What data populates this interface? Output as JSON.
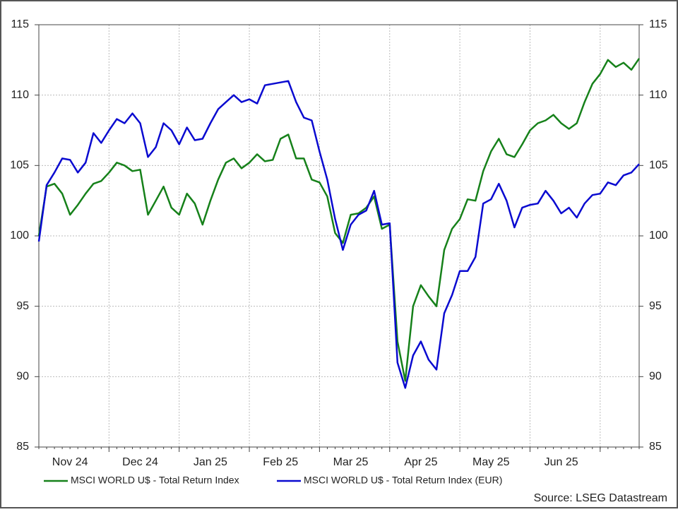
{
  "chart_data": {
    "type": "line",
    "source": "Source: LSEG Datastream",
    "categories": [
      null,
      null,
      null,
      null,
      "Nov 24",
      null,
      null,
      null,
      null,
      null,
      null,
      null,
      null,
      "Dec 24",
      null,
      null,
      null,
      null,
      null,
      null,
      null,
      null,
      "Jan 25",
      null,
      null,
      null,
      null,
      null,
      null,
      null,
      null,
      "Feb 25",
      null,
      null,
      null,
      null,
      null,
      null,
      null,
      null,
      "Mar 25",
      null,
      null,
      null,
      null,
      null,
      null,
      null,
      null,
      "Apr 25",
      null,
      null,
      null,
      null,
      null,
      null,
      null,
      null,
      "May 25",
      null,
      null,
      null,
      null,
      null,
      null,
      null,
      null,
      "Jun 25",
      null,
      null,
      null,
      null,
      null,
      null,
      null,
      null,
      null,
      null
    ],
    "series": [
      {
        "name": "MSCI WORLD U$ - Total Return Index",
        "color": "#16811a",
        "values": [
          100,
          103.5,
          103.7,
          103.0,
          101.5,
          102.2,
          103.0,
          103.7,
          103.9,
          104.5,
          105.2,
          105.0,
          104.6,
          104.7,
          101.5,
          102.5,
          103.5,
          102.0,
          101.5,
          103.0,
          102.3,
          100.8,
          102.5,
          104.0,
          105.2,
          105.5,
          104.8,
          105.2,
          105.8,
          105.3,
          105.4,
          106.9,
          107.2,
          105.5,
          105.5,
          104.0,
          103.8,
          102.8,
          100.2,
          99.5,
          101.5,
          101.6,
          102.0,
          102.8,
          100.5,
          100.8,
          92.5,
          89.7,
          95.0,
          96.5,
          95.7,
          95.0,
          99.0,
          100.5,
          101.2,
          102.6,
          102.5,
          104.6,
          106.0,
          106.9,
          105.8,
          105.6,
          106.5,
          107.5,
          108.0,
          108.2,
          108.6,
          108.0,
          107.6,
          108.0,
          109.5,
          110.8,
          111.5,
          112.5,
          112.0,
          112.3,
          111.8,
          112.6
        ]
      },
      {
        "name": "MSCI WORLD U$ - Total Return Index (EUR)",
        "color": "#0a0ad0",
        "values": [
          99.6,
          103.6,
          104.5,
          105.5,
          105.4,
          104.5,
          105.2,
          107.3,
          106.6,
          107.5,
          108.3,
          108.0,
          108.7,
          108.0,
          105.6,
          106.3,
          108.0,
          107.5,
          106.5,
          107.7,
          106.8,
          106.9,
          108.0,
          109.0,
          109.5,
          110.0,
          109.5,
          109.7,
          109.4,
          110.7,
          110.8,
          110.9,
          111.0,
          109.5,
          108.4,
          108.2,
          106.0,
          104.0,
          101.2,
          99.0,
          100.8,
          101.5,
          101.8,
          103.2,
          100.8,
          100.9,
          91.0,
          89.2,
          91.5,
          92.5,
          91.2,
          90.5,
          94.5,
          95.8,
          97.5,
          97.5,
          98.5,
          102.3,
          102.6,
          103.7,
          102.5,
          100.6,
          102.0,
          102.2,
          102.3,
          103.2,
          102.5,
          101.6,
          102.0,
          101.3,
          102.3,
          102.9,
          103.0,
          103.8,
          103.6,
          104.3,
          104.5,
          105.1
        ]
      }
    ],
    "ylim": [
      85,
      115
    ],
    "yticks": [
      85,
      90,
      95,
      100,
      105,
      110,
      115
    ],
    "y2lim": [
      85,
      115
    ],
    "y2ticks": [
      85,
      90,
      95,
      100,
      105,
      110,
      115
    ],
    "grid": true
  }
}
